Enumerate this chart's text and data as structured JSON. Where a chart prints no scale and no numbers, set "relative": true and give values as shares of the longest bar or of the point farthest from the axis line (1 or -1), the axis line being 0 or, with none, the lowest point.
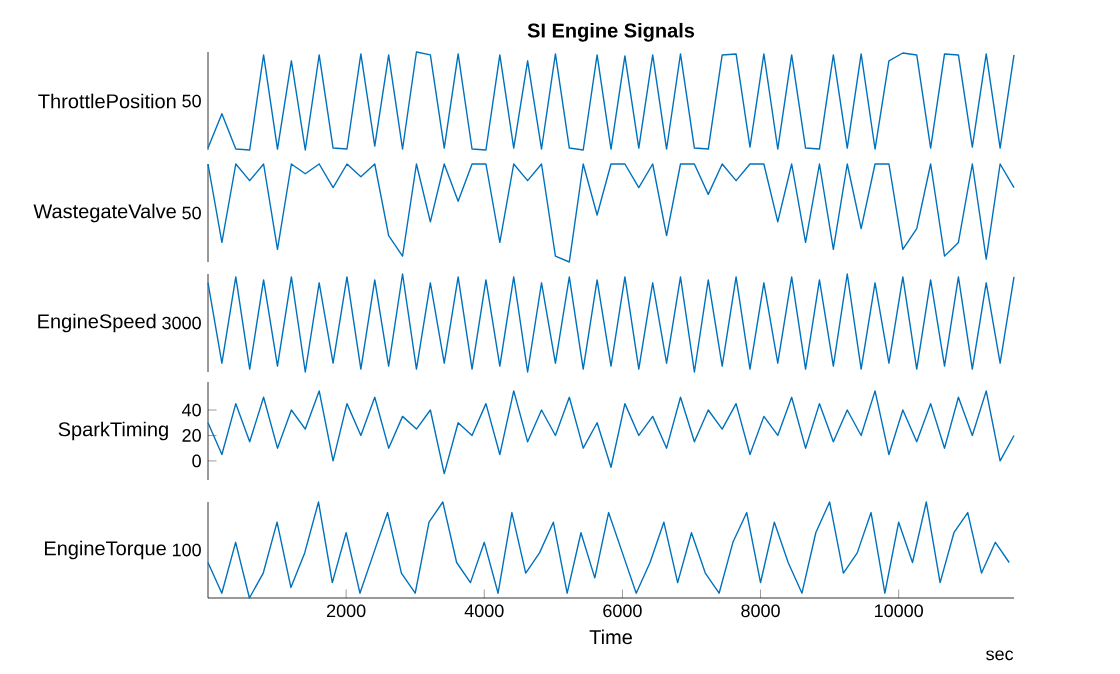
{
  "chart_data": [
    {
      "type": "line",
      "title": "SI Engine Signals",
      "ylabel": "ThrottlePosition",
      "tick_labels": "y",
      "relative": true,
      "annotations": [
        "50"
      ],
      "x": [
        0,
        200,
        400,
        600,
        800,
        1000,
        1200,
        1400,
        1600,
        1800,
        2000,
        2200,
        2400,
        2600,
        2800,
        3000,
        3200,
        3400,
        3600,
        3800,
        4000,
        4200,
        4400,
        4600,
        4800,
        5000,
        5200,
        5400,
        5600,
        5800,
        6000,
        6200,
        6400,
        6600,
        6800,
        7000,
        7200,
        7400,
        7600,
        7800,
        8000,
        8200,
        8400,
        8600,
        8800,
        9000,
        9200,
        9400,
        9600,
        9800,
        10000,
        10200,
        10400,
        10600,
        10800,
        11000,
        11200,
        11400,
        11600
      ],
      "series": [
        {
          "color": "#0072bd",
          "values": [
            0.02,
            0.37,
            0.01,
            0,
            0.97,
            0.01,
            0.91,
            0,
            0.97,
            0.02,
            0.01,
            0.98,
            0.04,
            0.97,
            0.01,
            1,
            0.97,
            0.02,
            0.98,
            0.01,
            0,
            0.97,
            0.02,
            0.91,
            0.01,
            0.98,
            0.02,
            0,
            0.97,
            0.01,
            0.96,
            0.02,
            0.97,
            0.01,
            0.98,
            0.02,
            0.01,
            0.97,
            0.98,
            0.03,
            0.98,
            0.01,
            0.97,
            0.02,
            0.01,
            0.97,
            0.02,
            0.98,
            0.01,
            0.91,
            0.99,
            0.97,
            0.02,
            0.98,
            0.97,
            0.03,
            0.98,
            0.02,
            0.97
          ]
        }
      ]
    },
    {
      "type": "line",
      "ylabel": "WastegateValve",
      "tick_labels": "y",
      "relative": true,
      "annotations": [
        "50"
      ],
      "x": [
        0,
        200,
        400,
        600,
        800,
        1000,
        1200,
        1400,
        1600,
        1800,
        2000,
        2200,
        2400,
        2600,
        2800,
        3000,
        3200,
        3400,
        3600,
        3800,
        4000,
        4200,
        4400,
        4600,
        4800,
        5000,
        5200,
        5400,
        5600,
        5800,
        6000,
        6200,
        6400,
        6600,
        6800,
        7000,
        7200,
        7400,
        7600,
        7800,
        8000,
        8200,
        8400,
        8600,
        8800,
        9000,
        9200,
        9400,
        9600,
        9800,
        10000,
        10200,
        10400,
        10600,
        10800,
        11000,
        11200,
        11400,
        11600
      ],
      "series": [
        {
          "color": "#0072bd",
          "values": [
            1,
            0.2,
            1,
            0.83,
            1,
            0.13,
            1,
            0.9,
            1,
            0.76,
            1,
            0.87,
            1,
            0.27,
            0.06,
            1,
            0.41,
            1,
            0.62,
            1,
            1,
            0.2,
            1,
            0.83,
            1,
            0.06,
            0,
            1,
            0.48,
            1,
            1,
            0.76,
            1,
            0.27,
            1,
            1,
            0.69,
            1,
            0.83,
            1,
            1,
            0.41,
            1,
            0.2,
            1,
            0.13,
            1,
            0.34,
            1,
            1,
            0.13,
            0.34,
            1,
            0.06,
            0.2,
            1,
            0.03,
            1,
            0.76
          ]
        }
      ]
    },
    {
      "type": "line",
      "ylabel": "EngineSpeed",
      "tick_labels": "y",
      "relative": true,
      "annotations": [
        "3000"
      ],
      "x": [
        0,
        200,
        400,
        600,
        800,
        1000,
        1200,
        1400,
        1600,
        1800,
        2000,
        2200,
        2400,
        2600,
        2800,
        3000,
        3200,
        3400,
        3600,
        3800,
        4000,
        4200,
        4400,
        4600,
        4800,
        5000,
        5200,
        5400,
        5600,
        5800,
        6000,
        6200,
        6400,
        6600,
        6800,
        7000,
        7200,
        7400,
        7600,
        7800,
        8000,
        8200,
        8400,
        8600,
        8800,
        9000,
        9200,
        9400,
        9600,
        9800,
        10000,
        10200,
        10400,
        10600,
        10800,
        11000,
        11200,
        11400,
        11600
      ],
      "series": [
        {
          "color": "#0072bd",
          "values": [
            0.91,
            0.09,
            0.97,
            0.03,
            0.94,
            0.06,
            0.97,
            0,
            0.91,
            0.09,
            0.97,
            0.03,
            0.94,
            0.06,
            1,
            0.03,
            0.91,
            0.09,
            0.97,
            0.03,
            0.94,
            0.06,
            0.97,
            0,
            0.91,
            0.09,
            0.97,
            0.03,
            0.94,
            0.06,
            0.97,
            0.03,
            0.91,
            0.09,
            0.97,
            0,
            0.94,
            0.06,
            0.97,
            0.03,
            0.91,
            0.09,
            0.97,
            0.03,
            0.94,
            0.06,
            1,
            0.03,
            0.91,
            0.09,
            0.97,
            0.03,
            0.94,
            0.06,
            0.97,
            0.03,
            0.91,
            0.09,
            0.97
          ]
        }
      ]
    },
    {
      "type": "line",
      "ylabel": "SparkTiming",
      "tick_labels": "y",
      "ylim": [
        -15,
        62
      ],
      "yticks": [
        0,
        20,
        40
      ],
      "x": [
        0,
        200,
        400,
        600,
        800,
        1000,
        1200,
        1400,
        1600,
        1800,
        2000,
        2200,
        2400,
        2600,
        2800,
        3000,
        3200,
        3400,
        3600,
        3800,
        4000,
        4200,
        4400,
        4600,
        4800,
        5000,
        5200,
        5400,
        5600,
        5800,
        6000,
        6200,
        6400,
        6600,
        6800,
        7000,
        7200,
        7400,
        7600,
        7800,
        8000,
        8200,
        8400,
        8600,
        8800,
        9000,
        9200,
        9400,
        9600,
        9800,
        10000,
        10200,
        10400,
        10600,
        10800,
        11000,
        11200,
        11400,
        11600
      ],
      "series": [
        {
          "color": "#0072bd",
          "values": [
            30,
            5,
            45,
            15,
            50,
            10,
            40,
            25,
            55,
            0,
            45,
            20,
            50,
            10,
            35,
            25,
            40,
            -10,
            30,
            20,
            45,
            5,
            55,
            15,
            40,
            20,
            50,
            10,
            30,
            -5,
            45,
            20,
            35,
            10,
            50,
            15,
            40,
            25,
            45,
            5,
            35,
            20,
            50,
            10,
            45,
            15,
            40,
            20,
            55,
            5,
            40,
            15,
            45,
            10,
            50,
            20,
            55,
            0,
            20
          ]
        }
      ]
    },
    {
      "type": "line",
      "ylabel": "EngineTorque",
      "xlabel": "Time",
      "relative": true,
      "annotations": [
        "100",
        "sec"
      ],
      "xlim": [
        0,
        11670
      ],
      "xticks": [
        2000,
        4000,
        6000,
        8000,
        10000
      ],
      "x": [
        0,
        200,
        400,
        600,
        800,
        1000,
        1200,
        1400,
        1600,
        1800,
        2000,
        2200,
        2400,
        2600,
        2800,
        3000,
        3200,
        3400,
        3600,
        3800,
        4000,
        4200,
        4400,
        4600,
        4800,
        5000,
        5200,
        5400,
        5600,
        5800,
        6000,
        6200,
        6400,
        6600,
        6800,
        7000,
        7200,
        7400,
        7600,
        7800,
        8000,
        8200,
        8400,
        8600,
        8800,
        9000,
        9200,
        9400,
        9600,
        9800,
        10000,
        10200,
        10400,
        10600,
        10800,
        11000,
        11200,
        11400,
        11600
      ],
      "series": [
        {
          "color": "#0072bd",
          "values": [
            0.37,
            0.05,
            0.58,
            0,
            0.26,
            0.79,
            0.11,
            0.47,
            1,
            0.16,
            0.68,
            0.05,
            0.47,
            0.89,
            0.26,
            0.05,
            0.79,
            1,
            0.37,
            0.16,
            0.58,
            0.05,
            0.89,
            0.26,
            0.47,
            0.79,
            0.05,
            0.68,
            0.21,
            0.89,
            0.47,
            0.05,
            0.37,
            0.79,
            0.16,
            0.68,
            0.26,
            0.05,
            0.58,
            0.89,
            0.16,
            0.79,
            0.37,
            0.05,
            0.68,
            1,
            0.26,
            0.47,
            0.89,
            0.05,
            0.79,
            0.37,
            1,
            0.16,
            0.68,
            0.89,
            0.26,
            0.58,
            0.37
          ]
        }
      ]
    }
  ]
}
